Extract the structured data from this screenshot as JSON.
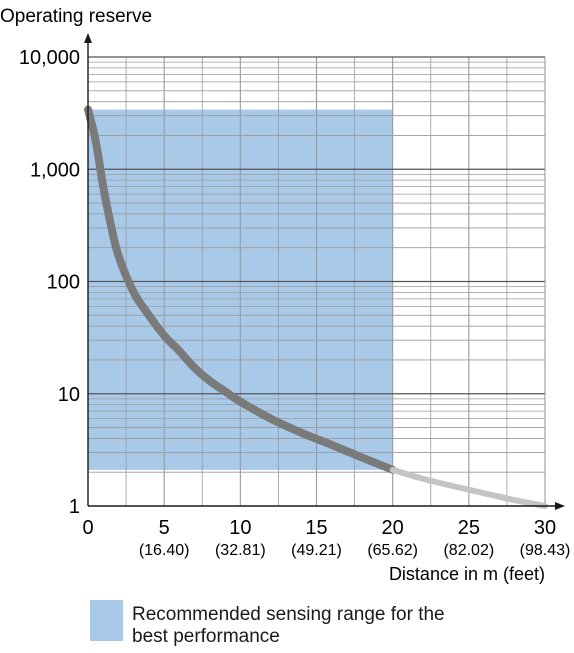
{
  "chart_data": {
    "type": "line",
    "ylabel": "Operating reserve",
    "xlabel": "Distance in m (feet)",
    "y_scale": "log",
    "ylim": [
      1,
      10000
    ],
    "xlim": [
      0,
      30
    ],
    "y_ticks": [
      1,
      10,
      100,
      1000,
      10000
    ],
    "y_tick_labels": [
      "1",
      "10",
      "100",
      "1,000",
      "10,000"
    ],
    "x_ticks": [
      0,
      5,
      10,
      15,
      20,
      25,
      30
    ],
    "x_tick_labels": [
      "0",
      "5",
      "10",
      "15",
      "20",
      "25",
      "30"
    ],
    "x_tick_sublabels": [
      "",
      "(16.40)",
      "(32.81)",
      "(49.21)",
      "(65.62)",
      "(82.02)",
      "(98.43)"
    ],
    "grid": true,
    "series": [
      {
        "style": "solid-thick",
        "x": [
          0,
          0.5,
          1,
          1.5,
          2,
          3,
          4,
          5,
          6,
          7,
          8,
          9,
          10,
          12,
          14,
          16,
          18,
          20
        ],
        "y": [
          3400,
          1800,
          700,
          320,
          170,
          80,
          50,
          33,
          24,
          17,
          13,
          10.5,
          8.5,
          6,
          4.5,
          3.5,
          2.7,
          2.1
        ]
      },
      {
        "style": "solid-light",
        "x": [
          20,
          22,
          24,
          26,
          28,
          30
        ],
        "y": [
          2.1,
          1.75,
          1.5,
          1.3,
          1.13,
          1.0
        ]
      }
    ],
    "highlight_region": {
      "x_range": [
        0,
        20
      ],
      "y_range": [
        2.1,
        3400
      ],
      "label": "Recommended sensing range for the best performance"
    },
    "colors": {
      "region": "#a9c9e9",
      "curve_main": "#7a7a7a",
      "curve_light": "#c4c4c4",
      "grid": "#9a9a9a",
      "axis": "#1a1a1a"
    }
  },
  "legend": {
    "label": "Recommended sensing range for the best performance"
  }
}
